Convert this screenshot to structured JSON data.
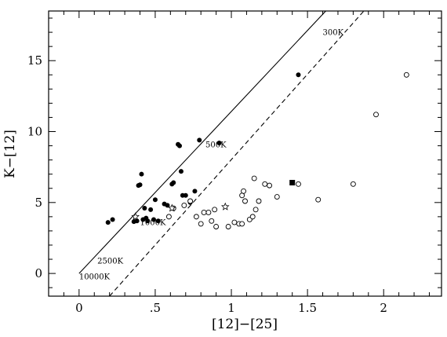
{
  "chart_data": {
    "type": "scatter",
    "xlabel": "[12]−[25]",
    "ylabel": "K−[12]",
    "xlim": [
      -0.2,
      2.38
    ],
    "ylim": [
      -1.6,
      18.5
    ],
    "x_ticks": [
      0,
      0.5,
      1,
      1.5,
      2
    ],
    "x_tick_labels": [
      "0",
      ".5",
      "1",
      "1.5",
      "2"
    ],
    "y_ticks": [
      0,
      5,
      10,
      15
    ],
    "y_tick_labels": [
      "0",
      "5",
      "10",
      "15"
    ],
    "lines": [
      {
        "style": "solid",
        "points": [
          [
            0,
            0
          ],
          [
            1.62,
            18.5
          ]
        ]
      },
      {
        "style": "dashed",
        "points": [
          [
            0.2,
            -1.6
          ],
          [
            1.87,
            18.5
          ]
        ]
      }
    ],
    "annotations": [
      {
        "text": "300K",
        "x": 1.6,
        "y": 16.8
      },
      {
        "text": "500K",
        "x": 0.83,
        "y": 8.9
      },
      {
        "text": "1000K",
        "x": 0.4,
        "y": 3.4
      },
      {
        "text": "2500K",
        "x": 0.12,
        "y": 0.7
      },
      {
        "text": "10000K",
        "x": 0.0,
        "y": -0.4
      }
    ],
    "series": [
      {
        "marker": "filled-circle",
        "points": [
          [
            0.19,
            3.6
          ],
          [
            0.22,
            3.8
          ],
          [
            0.36,
            3.65
          ],
          [
            0.38,
            3.7
          ],
          [
            0.39,
            6.2
          ],
          [
            0.4,
            6.25
          ],
          [
            0.41,
            7.0
          ],
          [
            0.42,
            3.8
          ],
          [
            0.43,
            4.6
          ],
          [
            0.44,
            3.9
          ],
          [
            0.45,
            3.7
          ],
          [
            0.47,
            4.5
          ],
          [
            0.49,
            3.8
          ],
          [
            0.5,
            5.2
          ],
          [
            0.52,
            3.7
          ],
          [
            0.56,
            4.9
          ],
          [
            0.58,
            4.8
          ],
          [
            0.61,
            6.3
          ],
          [
            0.62,
            6.4
          ],
          [
            0.65,
            9.1
          ],
          [
            0.66,
            9.0
          ],
          [
            0.67,
            7.2
          ],
          [
            0.68,
            5.5
          ],
          [
            0.7,
            5.5
          ],
          [
            0.73,
            5.0
          ],
          [
            0.76,
            5.8
          ],
          [
            0.79,
            9.4
          ],
          [
            0.92,
            9.2
          ],
          [
            1.44,
            14.0
          ]
        ]
      },
      {
        "marker": "open-circle",
        "points": [
          [
            0.59,
            4.0
          ],
          [
            0.62,
            4.6
          ],
          [
            0.69,
            4.8
          ],
          [
            0.73,
            5.1
          ],
          [
            0.77,
            4.0
          ],
          [
            0.8,
            3.5
          ],
          [
            0.82,
            4.3
          ],
          [
            0.85,
            4.3
          ],
          [
            0.87,
            3.7
          ],
          [
            0.89,
            4.5
          ],
          [
            0.9,
            3.3
          ],
          [
            0.98,
            3.3
          ],
          [
            1.02,
            3.6
          ],
          [
            1.05,
            3.5
          ],
          [
            1.07,
            3.5
          ],
          [
            1.07,
            5.5
          ],
          [
            1.08,
            5.8
          ],
          [
            1.09,
            5.1
          ],
          [
            1.12,
            3.8
          ],
          [
            1.14,
            4.0
          ],
          [
            1.15,
            6.7
          ],
          [
            1.16,
            4.5
          ],
          [
            1.18,
            5.1
          ],
          [
            1.22,
            6.3
          ],
          [
            1.25,
            6.2
          ],
          [
            1.3,
            5.4
          ],
          [
            1.44,
            6.3
          ],
          [
            1.57,
            5.2
          ],
          [
            1.8,
            6.3
          ],
          [
            1.95,
            11.2
          ],
          [
            2.15,
            14.0
          ]
        ]
      },
      {
        "marker": "open-star",
        "points": [
          [
            0.37,
            4.0
          ],
          [
            0.61,
            4.6
          ],
          [
            0.96,
            4.7
          ]
        ]
      },
      {
        "marker": "filled-square",
        "points": [
          [
            1.4,
            6.4
          ]
        ]
      }
    ]
  }
}
